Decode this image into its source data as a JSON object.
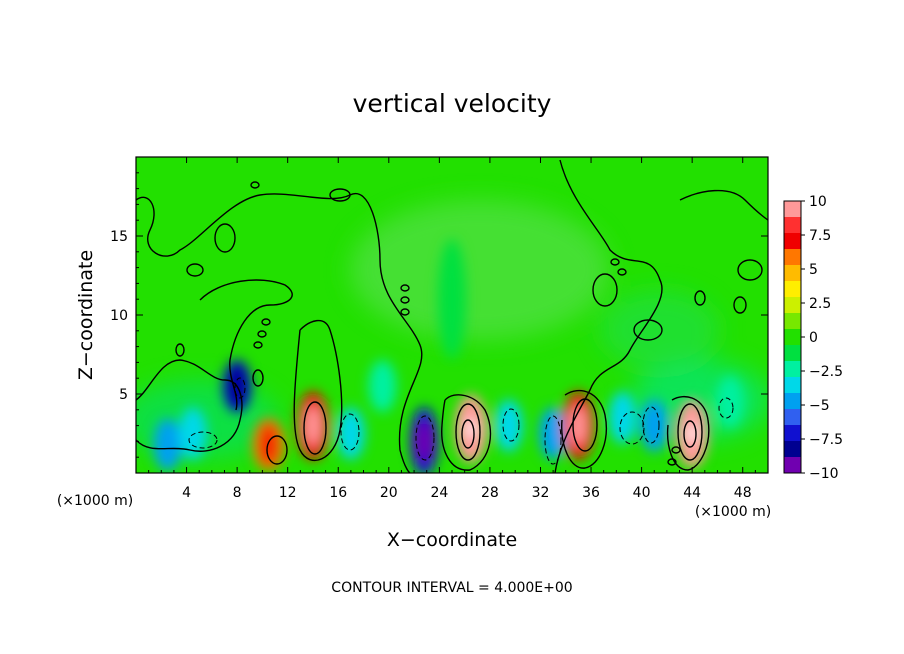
{
  "chart_data": {
    "type": "heatmap",
    "title": "vertical velocity",
    "xlabel": "X−coordinate",
    "ylabel": "Z−coordinate",
    "x_multiplier_label": "(×1000 m)",
    "x_multiplier_label_right": "(×1000 m)",
    "x_ticks": [
      4,
      8,
      12,
      16,
      20,
      24,
      28,
      32,
      36,
      40,
      44,
      48
    ],
    "y_ticks": [
      5,
      10,
      15
    ],
    "xlim": [
      0,
      50
    ],
    "ylim": [
      0,
      20
    ],
    "colorbar": {
      "ticks": [
        "10",
        "7.5",
        "5",
        "2.5",
        "0",
        "−2.5",
        "−5",
        "−7.5",
        "−10"
      ],
      "range": [
        -10,
        10
      ],
      "colors": [
        "#ff9999",
        "#ff3030",
        "#f00000",
        "#ff7700",
        "#ffbb00",
        "#ffee00",
        "#ccf000",
        "#77e800",
        "#22e000",
        "#00e040",
        "#00f0a0",
        "#00d8e8",
        "#00a0f0",
        "#3060f0",
        "#1010d0",
        "#000090",
        "#7000b0"
      ]
    },
    "cells": [
      {
        "x": 2.5,
        "z": 1.8,
        "v": -5
      },
      {
        "x": 4.5,
        "z": 2.5,
        "v": -4
      },
      {
        "x": 8.0,
        "z": 5.5,
        "v": -7
      },
      {
        "x": 10.5,
        "z": 1.8,
        "v": 6
      },
      {
        "x": 14.0,
        "z": 3.0,
        "v": 8
      },
      {
        "x": 17.0,
        "z": 2.5,
        "v": -4
      },
      {
        "x": 19.5,
        "z": 5.5,
        "v": -3
      },
      {
        "x": 22.8,
        "z": 2.0,
        "v": -8
      },
      {
        "x": 26.5,
        "z": 2.8,
        "v": 10
      },
      {
        "x": 29.5,
        "z": 3.0,
        "v": -4
      },
      {
        "x": 33.0,
        "z": 2.5,
        "v": -5
      },
      {
        "x": 35.0,
        "z": 3.0,
        "v": 8
      },
      {
        "x": 38.5,
        "z": 3.5,
        "v": -4
      },
      {
        "x": 41.0,
        "z": 3.0,
        "v": -5
      },
      {
        "x": 44.0,
        "z": 2.5,
        "v": 10
      },
      {
        "x": 47.0,
        "z": 4.5,
        "v": -3
      },
      {
        "x": 25.0,
        "z": 11.0,
        "v": -1
      }
    ],
    "footer": "CONTOUR INTERVAL = 4.000E+00"
  }
}
